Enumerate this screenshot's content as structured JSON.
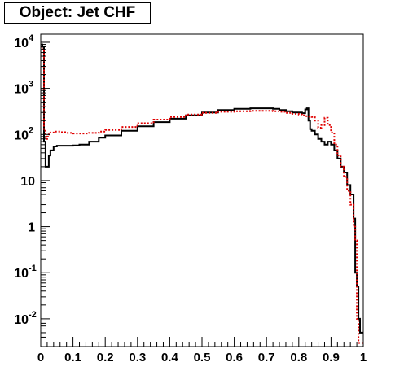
{
  "chart_data": {
    "type": "line",
    "title": "Object: Jet CHF",
    "xlabel": "",
    "ylabel": "",
    "xlim": [
      0,
      1
    ],
    "ylim": [
      0.0025,
      15000
    ],
    "y_scale": "log",
    "grid": false,
    "legend": "none",
    "x_ticks": [
      {
        "v": 0,
        "t": "0"
      },
      {
        "v": 0.1,
        "t": "0.1"
      },
      {
        "v": 0.2,
        "t": "0.2"
      },
      {
        "v": 0.3,
        "t": "0.3"
      },
      {
        "v": 0.4,
        "t": "0.4"
      },
      {
        "v": 0.5,
        "t": "0.5"
      },
      {
        "v": 0.6,
        "t": "0.6"
      },
      {
        "v": 0.7,
        "t": "0.7"
      },
      {
        "v": 0.8,
        "t": "0.8"
      },
      {
        "v": 0.9,
        "t": "0.9"
      },
      {
        "v": 1,
        "t": "1"
      }
    ],
    "y_ticks": [
      {
        "v": 0.01,
        "base": "10",
        "exp": "-2"
      },
      {
        "v": 0.1,
        "base": "10",
        "exp": "-1"
      },
      {
        "v": 1,
        "base": "1",
        "exp": ""
      },
      {
        "v": 10,
        "base": "10",
        "exp": ""
      },
      {
        "v": 100,
        "base": "10",
        "exp": "2"
      },
      {
        "v": 1000,
        "base": "10",
        "exp": "3"
      },
      {
        "v": 10000,
        "base": "10",
        "exp": "4"
      }
    ],
    "series": [
      {
        "color": "#000000",
        "style": "solid",
        "x": [
          0,
          0.005,
          0.01,
          0.015,
          0.02,
          0.025,
          0.03,
          0.04,
          0.05,
          0.06,
          0.08,
          0.1,
          0.12,
          0.15,
          0.18,
          0.2,
          0.25,
          0.3,
          0.35,
          0.4,
          0.45,
          0.5,
          0.55,
          0.6,
          0.65,
          0.7,
          0.72,
          0.74,
          0.76,
          0.78,
          0.8,
          0.81,
          0.82,
          0.825,
          0.83,
          0.835,
          0.84,
          0.85,
          0.86,
          0.87,
          0.88,
          0.89,
          0.9,
          0.91,
          0.92,
          0.93,
          0.94,
          0.95,
          0.96,
          0.97,
          0.975,
          0.98,
          0.985,
          0.99,
          0.995,
          1.0
        ],
        "values": [
          9000,
          8000,
          70,
          20,
          20,
          35,
          45,
          55,
          57,
          57,
          57,
          58,
          60,
          70,
          85,
          95,
          120,
          150,
          185,
          220,
          260,
          300,
          340,
          360,
          370,
          370,
          360,
          340,
          320,
          300,
          300,
          290,
          350,
          370,
          200,
          130,
          120,
          100,
          80,
          70,
          60,
          70,
          60,
          45,
          30,
          20,
          15,
          8,
          5,
          1.5,
          0.1,
          0.05,
          0.01,
          0.005,
          0.005,
          0.005
        ]
      },
      {
        "color": "#e00000",
        "style": "dotted",
        "x": [
          0,
          0.005,
          0.01,
          0.015,
          0.02,
          0.025,
          0.03,
          0.04,
          0.05,
          0.06,
          0.08,
          0.1,
          0.12,
          0.15,
          0.18,
          0.2,
          0.25,
          0.3,
          0.35,
          0.4,
          0.45,
          0.5,
          0.55,
          0.6,
          0.65,
          0.7,
          0.72,
          0.74,
          0.76,
          0.78,
          0.8,
          0.81,
          0.82,
          0.83,
          0.84,
          0.85,
          0.86,
          0.87,
          0.88,
          0.89,
          0.9,
          0.91,
          0.92,
          0.93,
          0.94,
          0.95,
          0.96,
          0.97,
          0.975,
          0.98,
          0.985,
          0.99,
          0.995,
          1.0
        ],
        "values": [
          8000,
          7000,
          120,
          80,
          90,
          100,
          110,
          115,
          115,
          112,
          108,
          105,
          105,
          108,
          115,
          125,
          145,
          175,
          210,
          240,
          270,
          295,
          310,
          320,
          325,
          325,
          320,
          310,
          295,
          280,
          270,
          260,
          250,
          245,
          240,
          200,
          140,
          160,
          230,
          160,
          110,
          60,
          35,
          20,
          12,
          6,
          3,
          1,
          0.5,
          0.01,
          0.003,
          0.003,
          0.003,
          0.003
        ]
      }
    ]
  }
}
